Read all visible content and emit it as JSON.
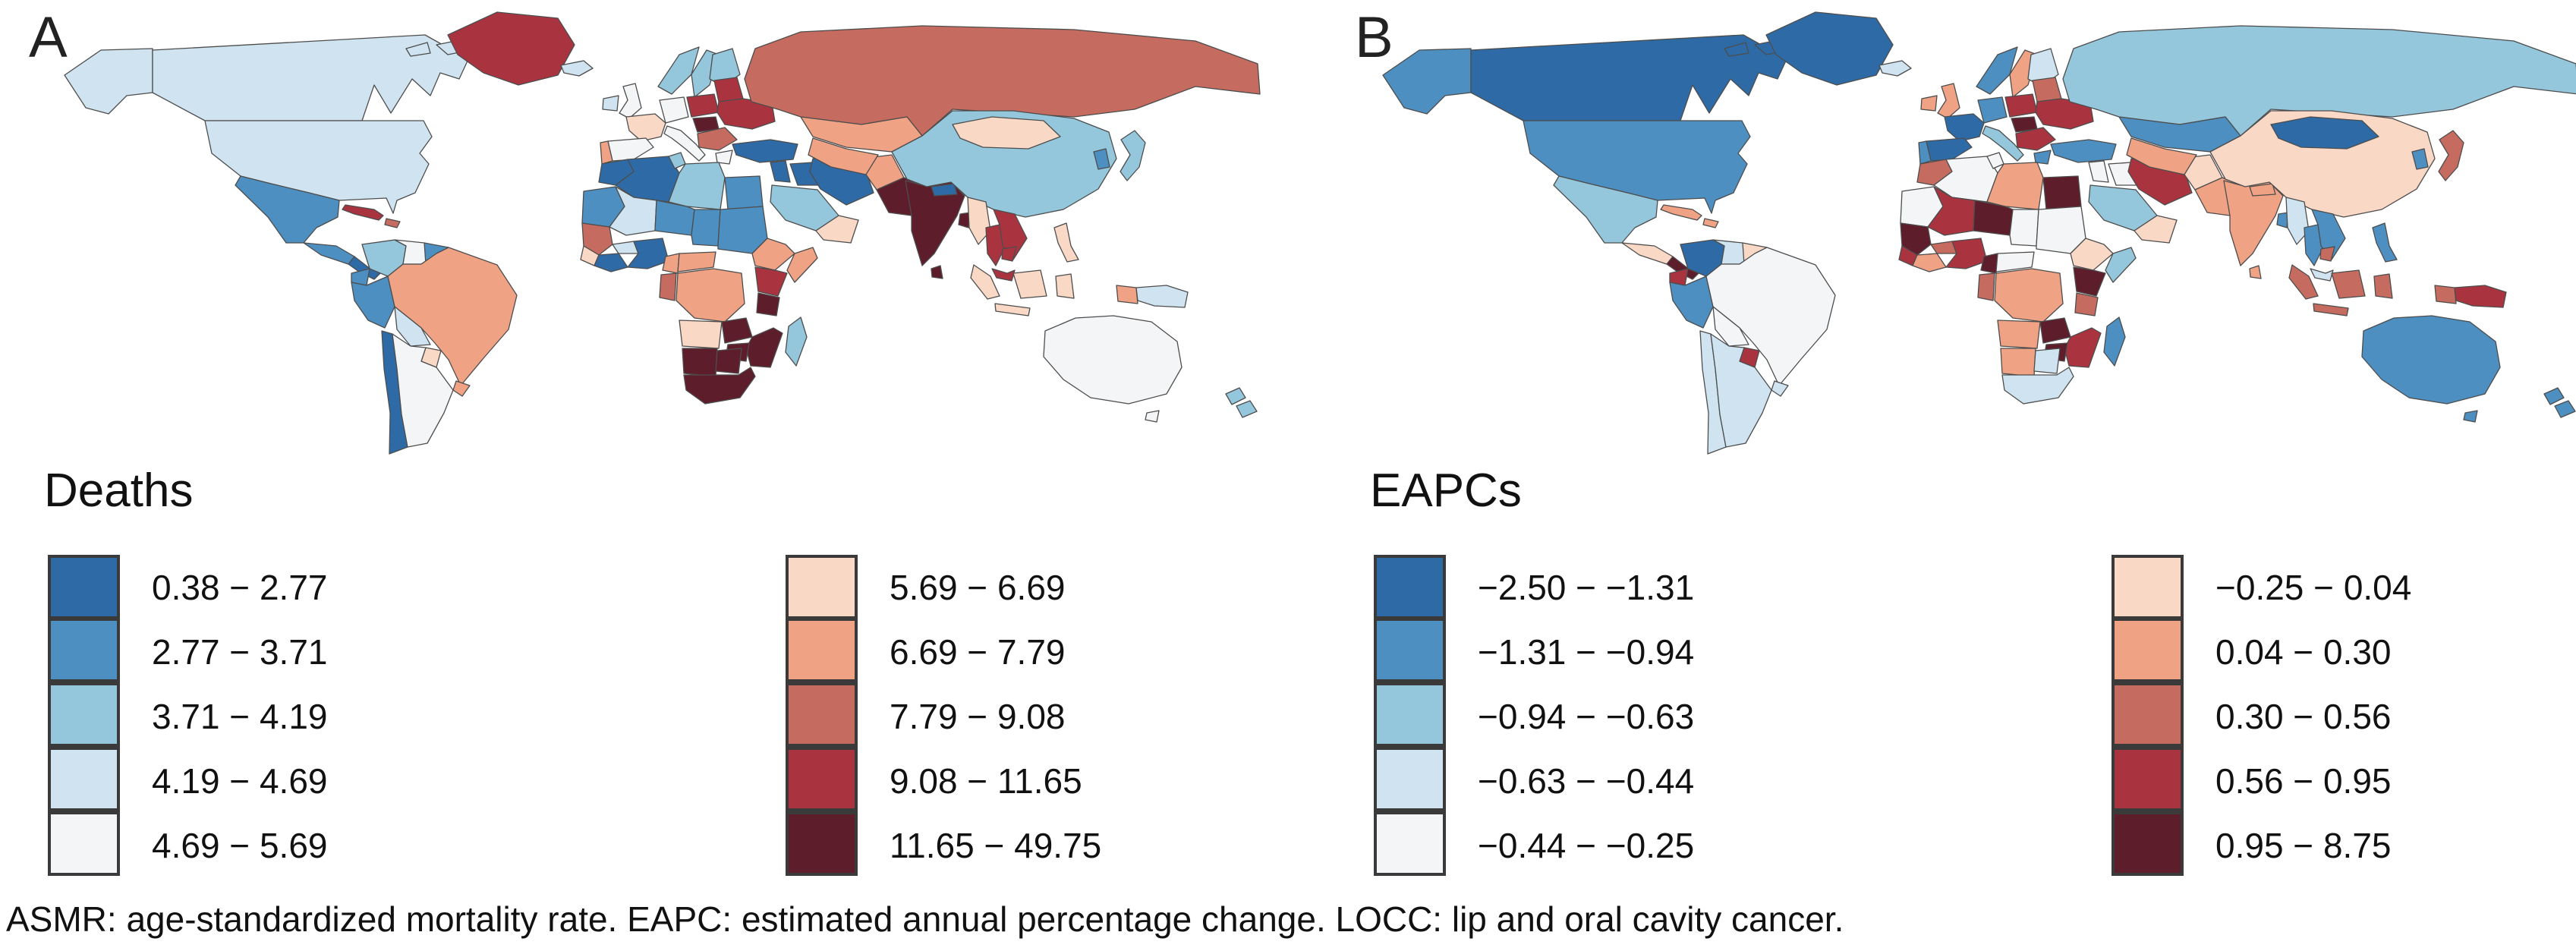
{
  "caption": "ASMR: age-standardized mortality rate. EAPC: estimated annual percentage change. LOCC: lip and oral cavity cancer.",
  "chart_data": [
    {
      "type": "choropleth",
      "label": "A",
      "title": "Deaths",
      "legend_position": "bottom-left, two columns",
      "bins": [
        {
          "range": "0.38 − 2.77",
          "color": "#2e6ba6"
        },
        {
          "range": "2.77 − 3.71",
          "color": "#4d8fc0"
        },
        {
          "range": "3.71 − 4.19",
          "color": "#94c6dc"
        },
        {
          "range": "4.19 − 4.69",
          "color": "#cfe4f0"
        },
        {
          "range": "4.69 − 5.69",
          "color": "#f3f5f7"
        },
        {
          "range": "5.69 − 6.69",
          "color": "#f9d8c6"
        },
        {
          "range": "6.69 − 7.79",
          "color": "#efa284"
        },
        {
          "range": "7.79 − 9.08",
          "color": "#c66b5f"
        },
        {
          "range": "9.08 − 11.65",
          "color": "#a93440"
        },
        {
          "range": "11.65 − 49.75",
          "color": "#5e1d2b"
        }
      ],
      "country_classes": {
        "alaska": 4,
        "canada": 4,
        "arctic1": 4,
        "arctic2": 4,
        "greenland": 9,
        "usa": 4,
        "mexico": 2,
        "cuba": 9,
        "hispaniola": 8,
        "camnorth": 2,
        "camsouth": 1,
        "colombia": 3,
        "venezuela": 5,
        "guyanas": 2,
        "ecuador": 2,
        "peru": 2,
        "brazil": 7,
        "bolivia": 4,
        "paraguay": 6,
        "uruguay": 7,
        "chile": 1,
        "argentina": 5,
        "iceland": 4,
        "ireland": 4,
        "uk": 5,
        "norway": 3,
        "sweden": 3,
        "finland": 3,
        "germany": 5,
        "france": 6,
        "spain": 5,
        "portugal": 7,
        "italy": 5,
        "poland": 9,
        "baltics": 9,
        "ukraine": 9,
        "hungary": 10,
        "romania": 8,
        "greece": 5,
        "morocco": 1,
        "algeria": 1,
        "tunisia": 3,
        "libya": 3,
        "egypt": 2,
        "mauritania": 2,
        "mali": 4,
        "niger": 2,
        "chad": 2,
        "sudan": 2,
        "senegal": 8,
        "sierraliberia": 6,
        "ivoryghana": 1,
        "burkina": 4,
        "nigeria": 1,
        "cameroon": 7,
        "car": 7,
        "ethiopia": 7,
        "somalia": 7,
        "kenya": 9,
        "drc": 7,
        "gabon": 8,
        "tanzania": 10,
        "angola": 6,
        "zambia": 10,
        "mozambique": 10,
        "zimbabwe": 10,
        "namibia": 10,
        "botswana": 10,
        "southafrica": 10,
        "madagascar": 3,
        "turkey": 1,
        "levant": 1,
        "iraq": 1,
        "iran": 1,
        "saudi": 3,
        "yemenoman": 6,
        "afghanistan": 7,
        "pakistan": 10,
        "india": 10,
        "nepal": 1,
        "srilanka": 10,
        "bangladesh": 10,
        "kazakhstan": 7,
        "centralasia": 7,
        "russia": 8,
        "mongolia": 6,
        "china": 3,
        "korea": 2,
        "japan": 3,
        "myanmar": 6,
        "thailand": 9,
        "vietnam": 9,
        "cambodia": 9,
        "malaysia": 9,
        "sumatra": 6,
        "java": 6,
        "borneo": 6,
        "sulawesi": 6,
        "philippines": 6,
        "wpapua": 7,
        "png": 4,
        "australia": 5,
        "tasmania": 5,
        "nznorth": 3,
        "nzsouth": 3
      }
    },
    {
      "type": "choropleth",
      "label": "B",
      "title": "EAPCs",
      "legend_position": "bottom-left, two columns",
      "bins": [
        {
          "range": "−2.50 − −1.31",
          "color": "#2e6ba6"
        },
        {
          "range": "−1.31 − −0.94",
          "color": "#4d8fc0"
        },
        {
          "range": "−0.94 − −0.63",
          "color": "#94c6dc"
        },
        {
          "range": "−0.63 − −0.44",
          "color": "#cfe4f0"
        },
        {
          "range": "−0.44 − −0.25",
          "color": "#f3f5f7"
        },
        {
          "range": "−0.25 − 0.04",
          "color": "#f9d8c6"
        },
        {
          "range": "0.04 − 0.30",
          "color": "#efa284"
        },
        {
          "range": "0.30 − 0.56",
          "color": "#c66b5f"
        },
        {
          "range": "0.56 − 0.95",
          "color": "#a93440"
        },
        {
          "range": "0.95 − 8.75",
          "color": "#5e1d2b"
        }
      ],
      "country_classes": {
        "alaska": 2,
        "canada": 1,
        "arctic1": 1,
        "arctic2": 1,
        "greenland": 1,
        "usa": 2,
        "mexico": 3,
        "cuba": 7,
        "hispaniola": 7,
        "camnorth": 6,
        "camsouth": 10,
        "colombia": 1,
        "venezuela": 4,
        "guyanas": 6,
        "ecuador": 9,
        "peru": 2,
        "brazil": 5,
        "bolivia": 5,
        "paraguay": 9,
        "uruguay": 4,
        "chile": 4,
        "argentina": 4,
        "iceland": 4,
        "ireland": 7,
        "uk": 7,
        "norway": 2,
        "sweden": 7,
        "finland": 4,
        "germany": 2,
        "france": 1,
        "spain": 1,
        "portugal": 2,
        "italy": 3,
        "poland": 9,
        "baltics": 8,
        "ukraine": 9,
        "hungary": 10,
        "romania": 9,
        "greece": 2,
        "morocco": 8,
        "algeria": 5,
        "tunisia": 5,
        "libya": 7,
        "egypt": 10,
        "mauritania": 5,
        "mali": 9,
        "niger": 10,
        "chad": 5,
        "sudan": 5,
        "senegal": 10,
        "sierraliberia": 9,
        "ivoryghana": 7,
        "burkina": 8,
        "nigeria": 9,
        "cameroon": 10,
        "car": 5,
        "ethiopia": 6,
        "somalia": 3,
        "kenya": 10,
        "drc": 7,
        "gabon": 8,
        "tanzania": 8,
        "angola": 7,
        "zambia": 10,
        "mozambique": 9,
        "zimbabwe": 10,
        "namibia": 7,
        "botswana": 4,
        "southafrica": 4,
        "madagascar": 2,
        "turkey": 2,
        "levant": 5,
        "iraq": 5,
        "iran": 9,
        "saudi": 3,
        "yemenoman": 6,
        "afghanistan": 6,
        "pakistan": 7,
        "india": 7,
        "nepal": 7,
        "srilanka": 7,
        "bangladesh": 2,
        "kazakhstan": 2,
        "centralasia": 7,
        "russia": 3,
        "mongolia": 1,
        "china": 6,
        "korea": 2,
        "japan": 8,
        "myanmar": 4,
        "thailand": 2,
        "vietnam": 2,
        "cambodia": 8,
        "malaysia": 4,
        "sumatra": 8,
        "java": 8,
        "borneo": 8,
        "sulawesi": 8,
        "philippines": 2,
        "wpapua": 8,
        "png": 9,
        "australia": 2,
        "tasmania": 2,
        "nznorth": 2,
        "nzsouth": 2
      }
    }
  ]
}
